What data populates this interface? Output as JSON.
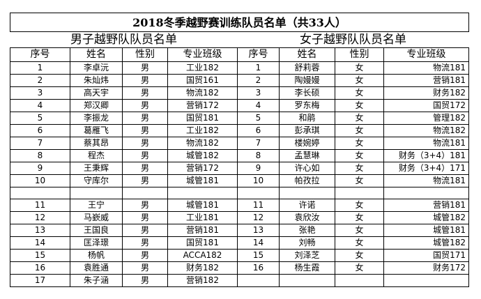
{
  "title": "2018冬季越野赛训练队员名单（共33人）",
  "left_title": "男子越野队队员名单",
  "right_title": "女子越野队队员名单",
  "headers": [
    "序号",
    "姓名",
    "性别",
    "专业班级",
    "序号",
    "姓名",
    "性别",
    "专业班级"
  ],
  "rows": [
    {
      "left": [
        "1",
        "李卓沅",
        "男",
        "工业182"
      ],
      "right": [
        "1",
        "舒莉蓉",
        "女",
        "物流181"
      ]
    },
    {
      "left": [
        "2",
        "朱灿炜",
        "男",
        "国贸161"
      ],
      "right": [
        "2",
        "陶嫚嫚",
        "女",
        "营销181"
      ]
    },
    {
      "left": [
        "3",
        "高天宇",
        "男",
        "物流182"
      ],
      "right": [
        "3",
        "李长硕",
        "女",
        "财务182"
      ]
    },
    {
      "left": [
        "4",
        "郑汉卿",
        "男",
        "营销172"
      ],
      "right": [
        "4",
        "罗东梅",
        "女",
        "国贸172"
      ]
    },
    {
      "left": [
        "5",
        "李振龙",
        "男",
        "国贸181"
      ],
      "right": [
        "5",
        "和鹃",
        "女",
        "管理182"
      ]
    },
    {
      "left": [
        "6",
        "葛雁飞",
        "男",
        "工业182"
      ],
      "right": [
        "6",
        "彭承琪",
        "女",
        "物流182"
      ]
    },
    {
      "left": [
        "7",
        "蔡其昂",
        "男",
        "物流182"
      ],
      "right": [
        "7",
        "楼婉婷",
        "女",
        "物流181"
      ]
    },
    {
      "left": [
        "8",
        "程杰",
        "男",
        "城管182"
      ],
      "right": [
        "8",
        "孟慧琳",
        "女",
        "财务（3+4）181"
      ]
    },
    {
      "left": [
        "9",
        "王秉辉",
        "男",
        "营销172"
      ],
      "right": [
        "9",
        "许心如",
        "女",
        "财务（3+4）171"
      ]
    },
    {
      "left": [
        "10",
        "守库尔",
        "男",
        "城管181"
      ],
      "right": [
        "10",
        "帕孜拉",
        "女",
        "物流181"
      ]
    },
    {
      "left": [
        "11",
        "王宁",
        "男",
        "城管181"
      ],
      "right": [
        "11",
        "许诺",
        "女",
        "营销181"
      ]
    },
    {
      "left": [
        "12",
        "马嶔威",
        "男",
        "工业181"
      ],
      "right": [
        "12",
        "袁欣汝",
        "女",
        "城管182"
      ]
    },
    {
      "left": [
        "13",
        "王国良",
        "男",
        "营销181"
      ],
      "right": [
        "13",
        "张艳",
        "女",
        "城管181"
      ]
    },
    {
      "left": [
        "14",
        "匡泽璟",
        "男",
        "国贸181"
      ],
      "right": [
        "14",
        "刘畅",
        "女",
        "城管182"
      ]
    },
    {
      "left": [
        "15",
        "杨帆",
        "男",
        "ACCA182"
      ],
      "right": [
        "15",
        "刘泽芝",
        "女",
        "国贸171"
      ]
    },
    {
      "left": [
        "16",
        "袁胜通",
        "男",
        "财务182"
      ],
      "right": [
        "16",
        "杨生霞",
        "女",
        "财务172"
      ]
    },
    {
      "left": [
        "17",
        "朱子涵",
        "男",
        "营销182"
      ]
    }
  ]
}
